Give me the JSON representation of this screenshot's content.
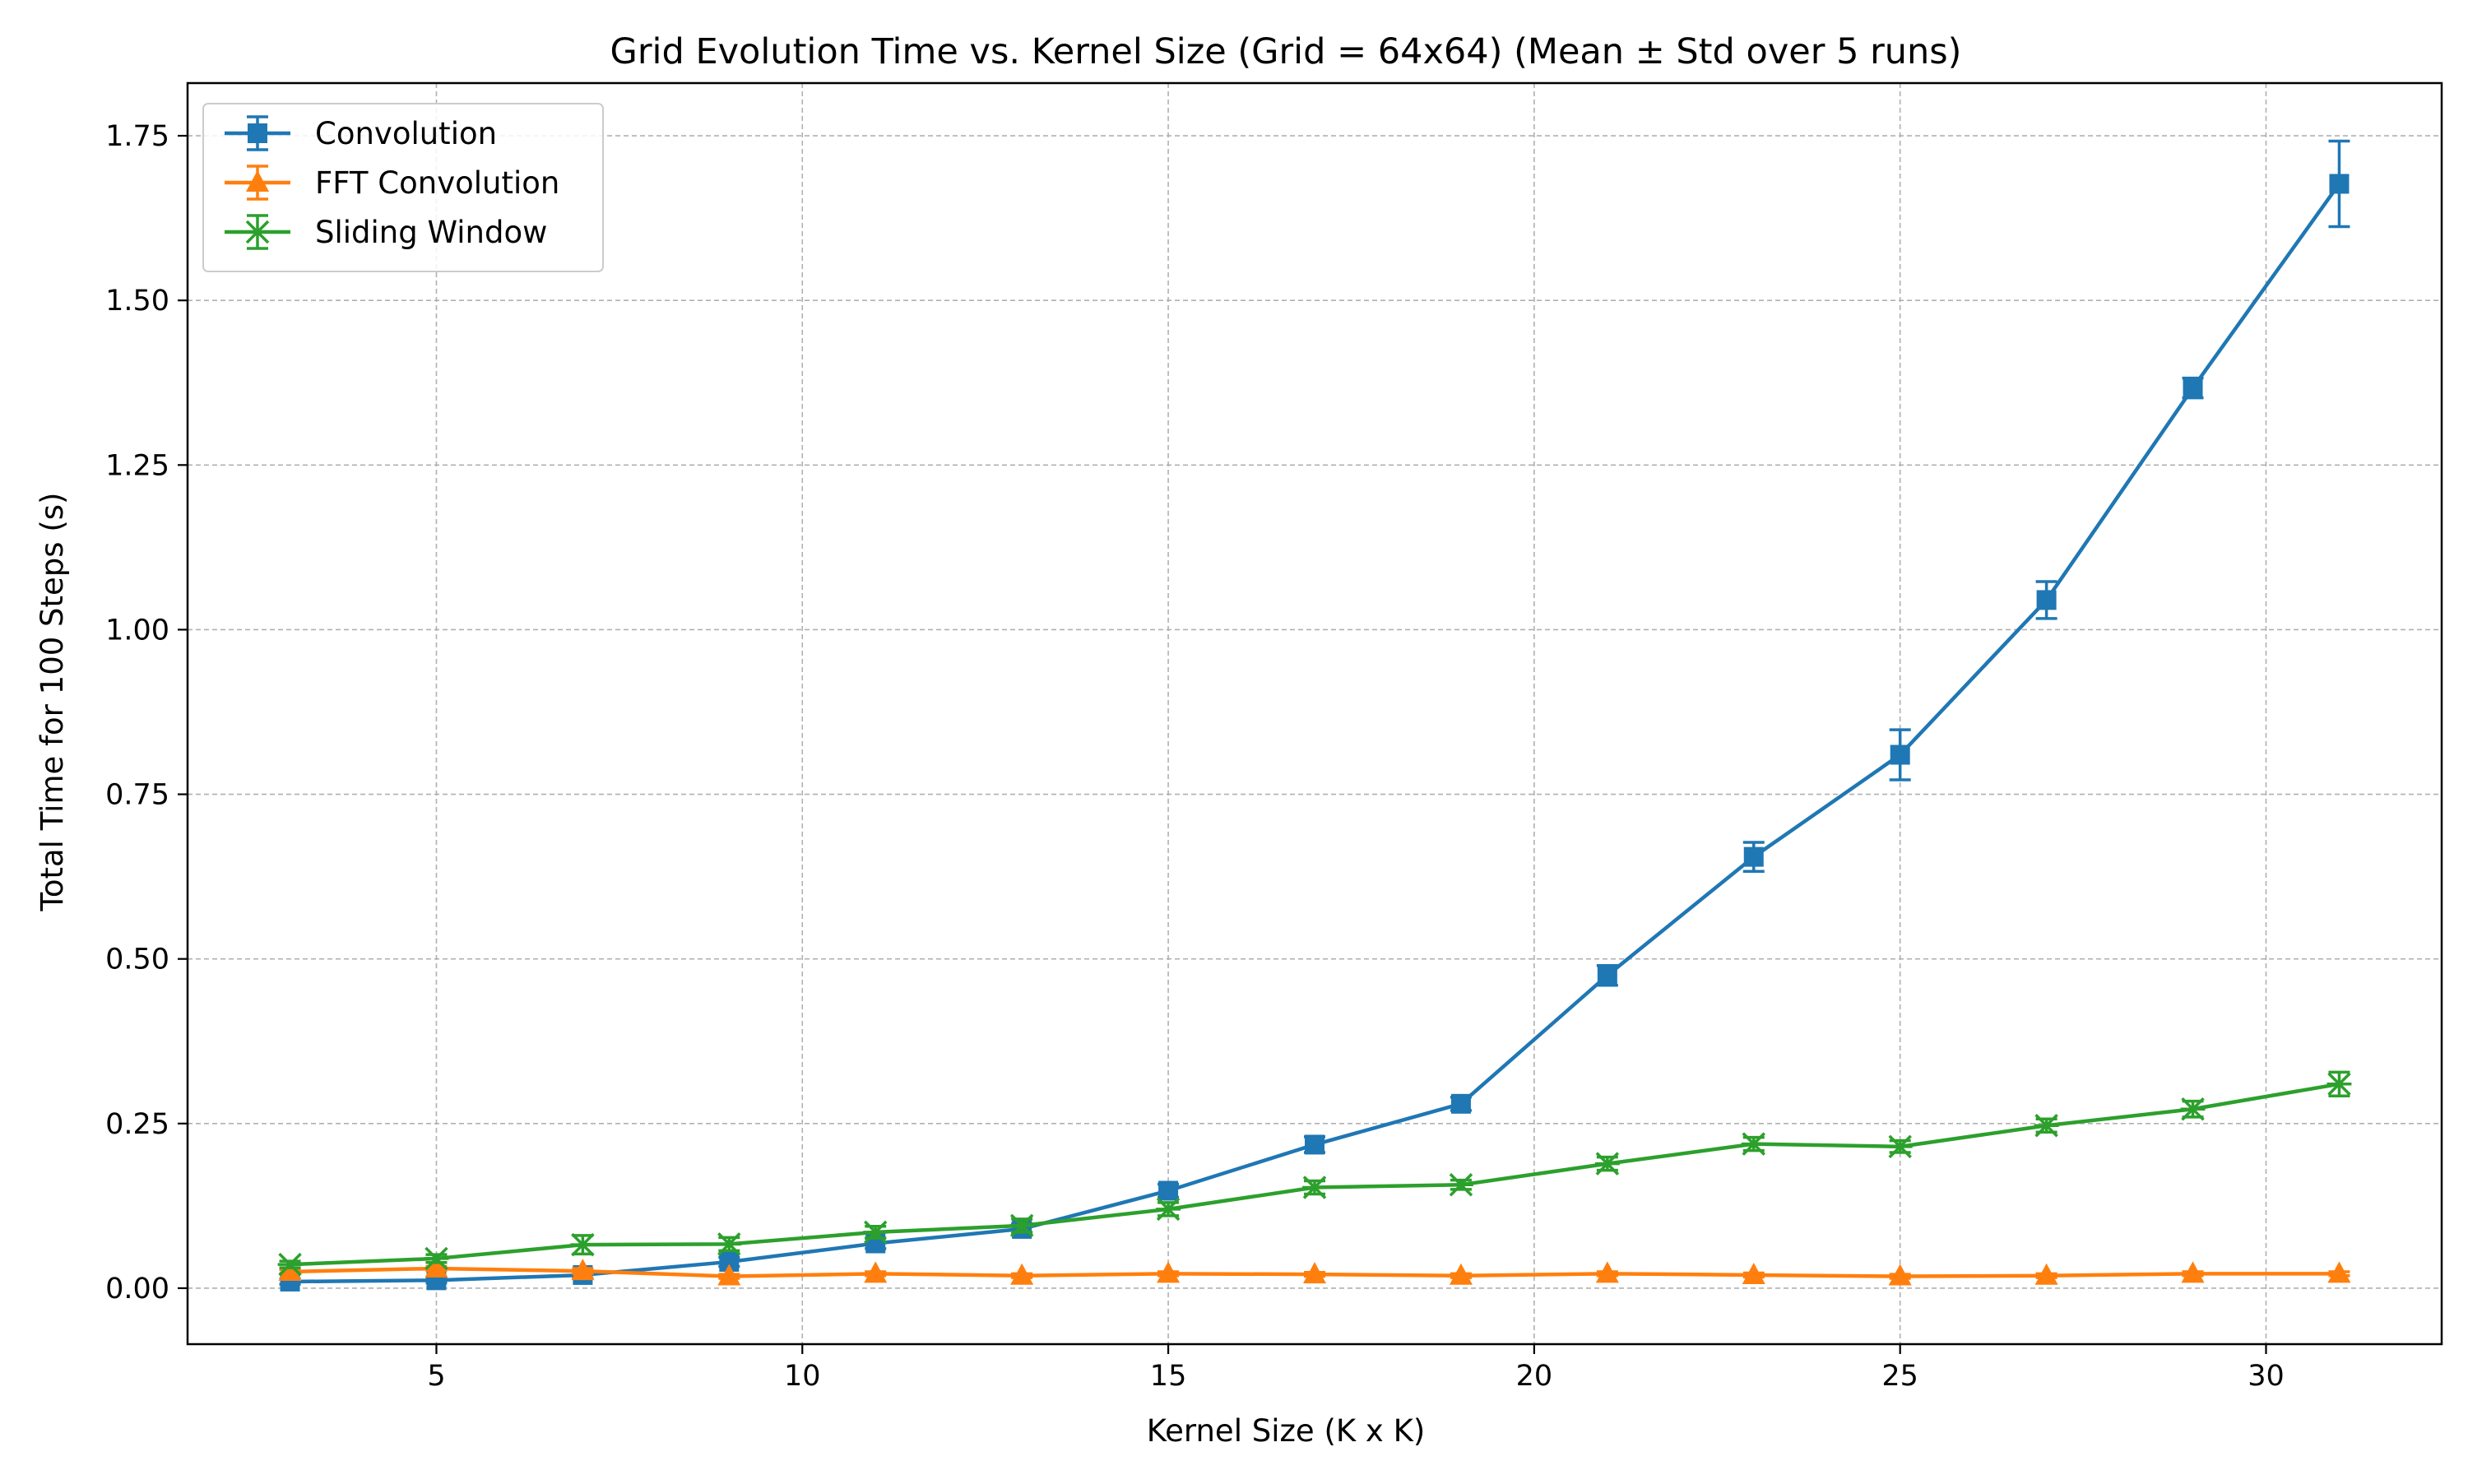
{
  "chart_data": {
    "type": "line",
    "title": "Grid Evolution Time vs. Kernel Size (Grid = 64x64) (Mean ± Std over 5 runs)",
    "xlabel": "Kernel Size (K x K)",
    "ylabel": "Total Time for 100 Steps (s)",
    "xlim": [
      1.6,
      32.4
    ],
    "ylim": [
      -0.085,
      1.83
    ],
    "xticks": [
      5,
      10,
      15,
      20,
      25,
      30
    ],
    "xtick_labels": [
      "5",
      "10",
      "15",
      "20",
      "25",
      "30"
    ],
    "yticks": [
      0.0,
      0.25,
      0.5,
      0.75,
      1.0,
      1.25,
      1.5,
      1.75
    ],
    "ytick_labels": [
      "0.00",
      "0.25",
      "0.50",
      "0.75",
      "1.00",
      "1.25",
      "1.50",
      "1.75"
    ],
    "grid": true,
    "legend_position": "upper-left",
    "x": [
      3,
      5,
      7,
      9,
      11,
      13,
      15,
      17,
      19,
      21,
      23,
      25,
      27,
      29,
      31
    ],
    "series": [
      {
        "name": "Convolution",
        "color": "#1f77b4",
        "marker": "square",
        "values": [
          0.01,
          0.012,
          0.02,
          0.04,
          0.068,
          0.09,
          0.148,
          0.218,
          0.28,
          0.475,
          0.655,
          0.81,
          1.045,
          1.367,
          1.677
        ],
        "errors": [
          0.004,
          0.004,
          0.005,
          0.007,
          0.008,
          0.008,
          0.01,
          0.012,
          0.01,
          0.015,
          0.022,
          0.038,
          0.028,
          0.015,
          0.065
        ]
      },
      {
        "name": "FFT Convolution",
        "color": "#ff7f0e",
        "marker": "triangle",
        "values": [
          0.025,
          0.03,
          0.026,
          0.018,
          0.022,
          0.019,
          0.022,
          0.021,
          0.019,
          0.022,
          0.02,
          0.018,
          0.019,
          0.022,
          0.022
        ],
        "errors": [
          0.003,
          0.003,
          0.004,
          0.003,
          0.003,
          0.003,
          0.003,
          0.003,
          0.003,
          0.003,
          0.003,
          0.003,
          0.003,
          0.003,
          0.003
        ]
      },
      {
        "name": "Sliding Window",
        "color": "#2ca02c",
        "marker": "x-star",
        "values": [
          0.036,
          0.045,
          0.066,
          0.067,
          0.085,
          0.095,
          0.12,
          0.153,
          0.157,
          0.189,
          0.219,
          0.215,
          0.247,
          0.272,
          0.31
        ],
        "errors": [
          0.005,
          0.006,
          0.014,
          0.01,
          0.009,
          0.01,
          0.01,
          0.01,
          0.007,
          0.01,
          0.01,
          0.009,
          0.01,
          0.012,
          0.018
        ]
      }
    ]
  }
}
